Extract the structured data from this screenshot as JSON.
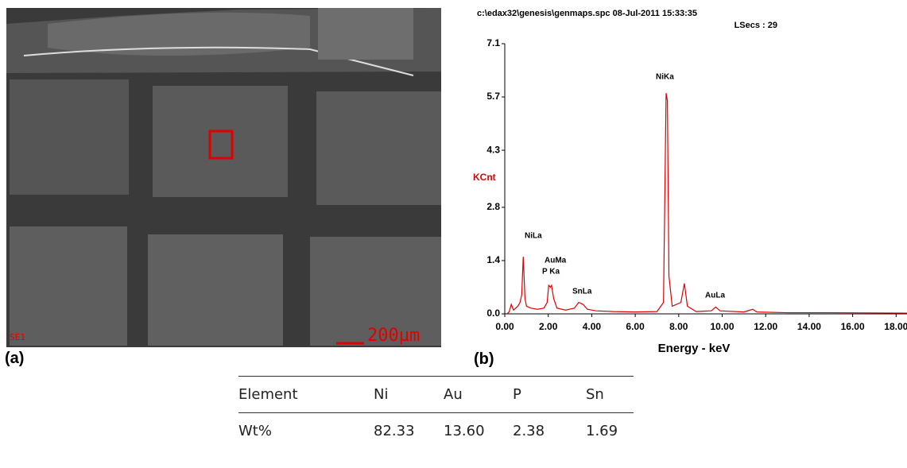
{
  "panel_a": {
    "label": "(a)",
    "detector": "SE1",
    "scale_bar": "200µm"
  },
  "panel_b": {
    "label": "(b)",
    "chart_data": {
      "type": "line",
      "header": [
        "c:\\edax32\\genesis\\genmaps.spc  08-Jul-2011 15:33:35",
        "LSecs : 29"
      ],
      "y_label": "KCnt",
      "x_label": "Energy - keV",
      "color": "#e00000",
      "x": [
        0.1,
        0.2,
        0.3,
        0.4,
        0.5,
        0.6,
        0.7,
        0.78,
        0.85,
        0.93,
        1.0,
        1.2,
        1.5,
        1.8,
        1.95,
        2.02,
        2.1,
        2.15,
        2.25,
        2.4,
        2.8,
        3.2,
        3.4,
        3.6,
        3.8,
        4.2,
        5,
        6,
        7,
        7.3,
        7.42,
        7.48,
        7.55,
        7.7,
        8.1,
        8.26,
        8.4,
        8.8,
        9.5,
        9.7,
        9.9,
        11,
        11.4,
        11.6,
        13,
        15,
        18.5
      ],
      "values": [
        0,
        0.05,
        0.25,
        0.1,
        0.15,
        0.2,
        0.3,
        0.5,
        1.5,
        0.4,
        0.2,
        0.15,
        0.12,
        0.15,
        0.3,
        0.75,
        0.7,
        0.75,
        0.4,
        0.15,
        0.1,
        0.15,
        0.3,
        0.25,
        0.12,
        0.08,
        0.06,
        0.05,
        0.06,
        0.3,
        5.8,
        5.6,
        1.0,
        0.2,
        0.3,
        0.8,
        0.2,
        0.06,
        0.08,
        0.18,
        0.08,
        0.05,
        0.12,
        0.05,
        0.03,
        0.03,
        0.02
      ],
      "xlim": [
        0,
        18.5
      ],
      "ylim": [
        0,
        7.1
      ],
      "xticks": [
        {
          "value": 0,
          "label": "0.00"
        },
        {
          "value": 2,
          "label": "2.00"
        },
        {
          "value": 4,
          "label": "4.00"
        },
        {
          "value": 6,
          "label": "6.00"
        },
        {
          "value": 8,
          "label": "8.00"
        },
        {
          "value": 10,
          "label": "10.00"
        },
        {
          "value": 12,
          "label": "12.00"
        },
        {
          "value": 14,
          "label": "14.00"
        },
        {
          "value": 16,
          "label": "16.00"
        },
        {
          "value": 18,
          "label": "18.00"
        }
      ],
      "yticks": [
        {
          "value": 0,
          "label": "0.0"
        },
        1.4,
        2.8,
        4.3,
        5.7,
        7.1
      ],
      "annotations": [
        "NiLa",
        "AuMa",
        "P Ka",
        "SnLa",
        "NiKa",
        "AuLa"
      ]
    }
  },
  "table": {
    "header": [
      "Element",
      "Ni",
      "Au",
      "P",
      "Sn"
    ],
    "rows": [
      [
        "Wt%",
        "82.33",
        "13.60",
        "2.38",
        "1.69"
      ]
    ]
  }
}
